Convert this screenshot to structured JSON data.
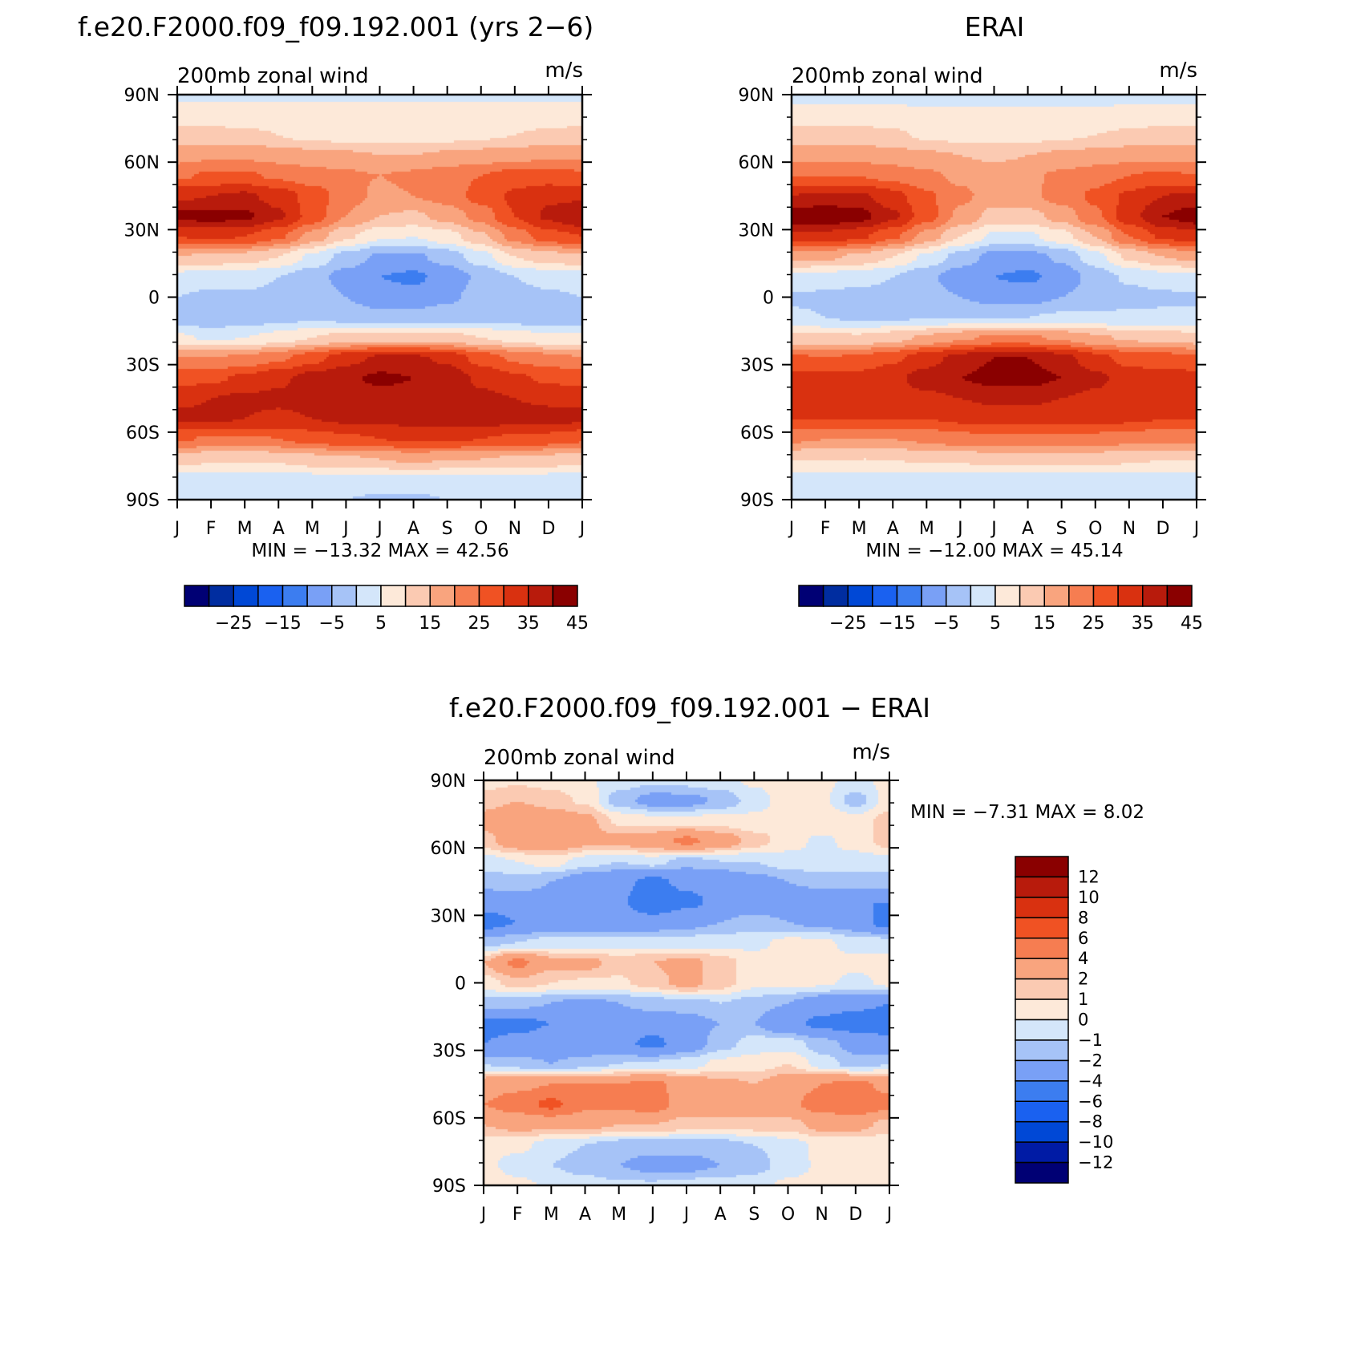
{
  "chart_data": [
    {
      "type": "heatmap",
      "title": "f.e20.F2000.f09_f09.192.001 (yrs 2−6)",
      "subtitle_left": "200mb zonal wind",
      "subtitle_right": "m/s",
      "x_ticklabels": [
        "J",
        "F",
        "M",
        "A",
        "M",
        "J",
        "J",
        "A",
        "S",
        "O",
        "N",
        "D",
        "J"
      ],
      "y_ticklabels": [
        "90N",
        "60N",
        "30N",
        "0",
        "30S",
        "60S",
        "90S"
      ],
      "min_max_text": "MIN = −13.32 MAX = 42.56",
      "min": -13.32,
      "max": 42.56,
      "levels": [
        -30,
        -25,
        -20,
        -15,
        -10,
        -5,
        0,
        5,
        10,
        15,
        20,
        25,
        30,
        35,
        40,
        45
      ],
      "colorbar_labels": [
        "−25",
        "−15",
        "−5",
        "5",
        "15",
        "25",
        "35",
        "45"
      ],
      "colorbar_orientation": "horizontal",
      "grid": false,
      "z": [
        [
          4,
          4,
          4,
          4,
          4,
          4,
          4,
          4,
          4,
          4,
          4,
          4,
          4
        ],
        [
          7,
          7,
          7,
          8,
          8,
          8,
          8,
          8,
          7,
          7,
          7,
          7,
          7
        ],
        [
          12,
          12,
          11,
          10,
          8,
          8,
          8,
          8,
          8,
          9,
          10,
          11,
          12
        ],
        [
          18,
          19,
          19,
          18,
          17,
          16,
          15,
          15,
          16,
          17,
          18,
          19,
          19
        ],
        [
          24,
          26,
          26,
          24,
          22,
          21,
          20,
          21,
          23,
          25,
          27,
          27,
          26
        ],
        [
          34,
          35,
          36,
          33,
          28,
          22,
          19,
          20,
          22,
          27,
          31,
          34,
          34
        ],
        [
          41,
          42,
          41,
          36,
          28,
          20,
          15,
          14,
          17,
          22,
          30,
          36,
          40
        ],
        [
          30,
          31,
          30,
          26,
          18,
          11,
          6,
          5,
          8,
          14,
          22,
          28,
          30
        ],
        [
          15,
          14,
          13,
          10,
          4,
          -2,
          -6,
          -6,
          -3,
          3,
          10,
          13,
          14
        ],
        [
          3,
          2,
          2,
          0,
          -3,
          -7,
          -10,
          -11,
          -8,
          -4,
          0,
          2,
          3
        ],
        [
          0,
          -1,
          -1,
          -1,
          -2,
          -5,
          -8,
          -8,
          -6,
          -3,
          -2,
          -1,
          0
        ],
        [
          -3,
          -4,
          -3,
          -2,
          -1,
          -2,
          -3,
          -3,
          -2,
          -2,
          -3,
          -3,
          -3
        ],
        [
          6,
          4,
          5,
          7,
          10,
          12,
          13,
          13,
          12,
          10,
          8,
          6,
          6
        ],
        [
          20,
          20,
          21,
          24,
          28,
          33,
          36,
          36,
          34,
          28,
          24,
          22,
          20
        ],
        [
          28,
          29,
          31,
          34,
          37,
          39,
          41,
          40,
          38,
          34,
          31,
          29,
          28
        ],
        [
          34,
          35,
          36,
          36,
          37,
          37,
          38,
          38,
          37,
          36,
          35,
          34,
          34
        ],
        [
          36,
          36,
          35,
          34,
          35,
          36,
          36,
          37,
          37,
          37,
          37,
          37,
          36
        ],
        [
          26,
          24,
          24,
          25,
          27,
          29,
          30,
          31,
          31,
          30,
          29,
          28,
          26
        ],
        [
          12,
          11,
          11,
          11,
          13,
          14,
          15,
          16,
          15,
          15,
          14,
          13,
          12
        ],
        [
          3,
          3,
          3,
          3,
          3,
          4,
          4,
          4,
          4,
          4,
          4,
          3,
          3
        ],
        [
          1,
          0,
          0,
          0,
          0,
          0,
          -1,
          -1,
          0,
          0,
          0,
          0,
          1
        ]
      ]
    },
    {
      "type": "heatmap",
      "title": "ERAI",
      "subtitle_left": "200mb zonal wind",
      "subtitle_right": "m/s",
      "x_ticklabels": [
        "J",
        "F",
        "M",
        "A",
        "M",
        "J",
        "J",
        "A",
        "S",
        "O",
        "N",
        "D",
        "J"
      ],
      "y_ticklabels": [
        "90N",
        "60N",
        "30N",
        "0",
        "30S",
        "60S",
        "90S"
      ],
      "min_max_text": "MIN = −12.00 MAX = 45.14",
      "min": -12.0,
      "max": 45.14,
      "levels": [
        -30,
        -25,
        -20,
        -15,
        -10,
        -5,
        0,
        5,
        10,
        15,
        20,
        25,
        30,
        35,
        40,
        45
      ],
      "colorbar_labels": [
        "−25",
        "−15",
        "−5",
        "5",
        "15",
        "25",
        "35",
        "45"
      ],
      "colorbar_orientation": "horizontal",
      "grid": false,
      "z": [
        [
          3,
          3,
          3,
          3,
          3,
          3,
          3,
          3,
          3,
          3,
          3,
          3,
          3
        ],
        [
          7,
          7,
          7,
          7,
          6,
          6,
          6,
          6,
          6,
          6,
          7,
          7,
          7
        ],
        [
          12,
          12,
          12,
          11,
          9,
          8,
          8,
          8,
          9,
          10,
          11,
          12,
          12
        ],
        [
          18,
          18,
          18,
          17,
          16,
          15,
          14,
          15,
          16,
          17,
          18,
          18,
          18
        ],
        [
          25,
          25,
          25,
          23,
          21,
          19,
          18,
          19,
          21,
          23,
          25,
          26,
          25
        ],
        [
          35,
          36,
          36,
          32,
          26,
          21,
          18,
          19,
          22,
          26,
          31,
          35,
          36
        ],
        [
          43,
          44,
          42,
          36,
          27,
          19,
          13,
          13,
          17,
          24,
          33,
          40,
          43
        ],
        [
          33,
          33,
          31,
          26,
          18,
          10,
          4,
          4,
          8,
          15,
          25,
          31,
          33
        ],
        [
          17,
          16,
          14,
          10,
          4,
          -2,
          -7,
          -7,
          -4,
          3,
          11,
          15,
          17
        ],
        [
          4,
          3,
          2,
          0,
          -4,
          -8,
          -10,
          -11,
          -8,
          -3,
          1,
          3,
          4
        ],
        [
          -1,
          -1,
          -2,
          -2,
          -3,
          -5,
          -7,
          -7,
          -5,
          -3,
          -2,
          -1,
          -1
        ],
        [
          1,
          0,
          -1,
          -1,
          0,
          0,
          0,
          0,
          1,
          1,
          1,
          1,
          1
        ],
        [
          12,
          11,
          11,
          13,
          16,
          19,
          21,
          21,
          19,
          16,
          14,
          13,
          12
        ],
        [
          26,
          25,
          26,
          29,
          33,
          37,
          40,
          40,
          37,
          32,
          28,
          27,
          26
        ],
        [
          32,
          32,
          32,
          34,
          37,
          40,
          42,
          42,
          40,
          36,
          33,
          32,
          32
        ],
        [
          33,
          33,
          33,
          33,
          34,
          35,
          36,
          36,
          35,
          34,
          33,
          33,
          33
        ],
        [
          30,
          30,
          30,
          30,
          30,
          31,
          32,
          32,
          32,
          32,
          31,
          30,
          30
        ],
        [
          21,
          20,
          20,
          20,
          21,
          23,
          24,
          24,
          24,
          23,
          22,
          21,
          21
        ],
        [
          10,
          10,
          10,
          10,
          11,
          11,
          12,
          12,
          12,
          12,
          11,
          10,
          10
        ],
        [
          3,
          3,
          3,
          3,
          3,
          3,
          3,
          3,
          3,
          3,
          3,
          3,
          3
        ],
        [
          1,
          1,
          1,
          1,
          1,
          1,
          1,
          1,
          1,
          1,
          1,
          1,
          1
        ]
      ]
    },
    {
      "type": "heatmap",
      "title": "f.e20.F2000.f09_f09.192.001 − ERAI",
      "subtitle_left": "200mb zonal wind",
      "subtitle_right": "m/s",
      "x_ticklabels": [
        "J",
        "F",
        "M",
        "A",
        "M",
        "J",
        "J",
        "A",
        "S",
        "O",
        "N",
        "D",
        "J"
      ],
      "y_ticklabels": [
        "90N",
        "60N",
        "30N",
        "0",
        "30S",
        "60S",
        "90S"
      ],
      "min_max_text": "MIN = −7.31 MAX = 8.02",
      "min": -7.31,
      "max": 8.02,
      "levels": [
        -12,
        -10,
        -8,
        -6,
        -4,
        -2,
        -1,
        0,
        1,
        2,
        4,
        6,
        8,
        10,
        12
      ],
      "colorbar_labels": [
        "12",
        "10",
        "8",
        "6",
        "4",
        "2",
        "1",
        "0",
        "−1",
        "−2",
        "−4",
        "−6",
        "−8",
        "−10",
        "−12"
      ],
      "colorbar_orientation": "vertical",
      "grid": false,
      "z": [
        [
          0.5,
          0.8,
          0.6,
          0.2,
          -0.5,
          -0.8,
          -0.6,
          -0.3,
          0.2,
          0.4,
          0.2,
          -0.3,
          0.3
        ],
        [
          1.5,
          2.0,
          1.5,
          0.8,
          -1.5,
          -2.5,
          -2.5,
          -1.8,
          -0.5,
          0.5,
          0.3,
          -1.5,
          0.5
        ],
        [
          2.5,
          3.5,
          3.0,
          2.5,
          0.8,
          0.5,
          0.5,
          0.5,
          0.3,
          0.8,
          1.0,
          0.5,
          1.5
        ],
        [
          1.5,
          3.0,
          3.5,
          2.5,
          2.5,
          3.0,
          4.5,
          3.0,
          1.5,
          0.5,
          -0.3,
          0.5,
          1.5
        ],
        [
          -0.5,
          0.0,
          0.5,
          -0.5,
          -1.0,
          -0.5,
          -1.5,
          -1.0,
          -1.0,
          -0.5,
          -0.3,
          -0.5,
          -0.5
        ],
        [
          -1.5,
          -1.5,
          -2.0,
          -3.0,
          -3.5,
          -4.5,
          -3.5,
          -3.5,
          -2.5,
          -2.0,
          -1.5,
          -1.5,
          -1.5
        ],
        [
          -3.0,
          -2.5,
          -2.5,
          -3.5,
          -3.5,
          -6.0,
          -4.5,
          -3.5,
          -3.0,
          -3.0,
          -3.5,
          -4.0,
          -4.0
        ],
        [
          -5.0,
          -4.0,
          -3.0,
          -3.5,
          -3.0,
          -3.0,
          -2.5,
          -2.0,
          -1.5,
          -2.0,
          -2.5,
          -3.0,
          -5.0
        ],
        [
          -1.5,
          -1.0,
          -0.5,
          -0.5,
          -0.5,
          -0.5,
          -0.5,
          -0.5,
          -0.3,
          0.3,
          0.3,
          -0.5,
          -0.5
        ],
        [
          2.0,
          4.5,
          2.5,
          2.5,
          1.5,
          2.0,
          2.5,
          1.5,
          0.5,
          0.5,
          0.5,
          0.3,
          0.5
        ],
        [
          0.5,
          1.5,
          1.0,
          0.8,
          0.8,
          1.5,
          2.5,
          1.5,
          0.3,
          0.3,
          0.2,
          -0.3,
          0.3
        ],
        [
          -1.5,
          -1.5,
          -2.0,
          -2.5,
          -2.0,
          -1.5,
          -1.5,
          -1.0,
          -1.5,
          -2.0,
          -3.0,
          -3.5,
          -4.0
        ],
        [
          -4.5,
          -4.5,
          -4.0,
          -3.5,
          -3.0,
          -3.0,
          -2.5,
          -2.0,
          -2.0,
          -3.5,
          -4.5,
          -5.0,
          -5.5
        ],
        [
          -4.0,
          -3.5,
          -3.0,
          -3.0,
          -3.5,
          -4.5,
          -3.0,
          -1.5,
          -0.5,
          -0.5,
          -1.5,
          -2.5,
          -3.0
        ],
        [
          -1.0,
          -1.5,
          -2.0,
          -1.5,
          -1.0,
          -0.8,
          -0.5,
          0.3,
          0.5,
          1.0,
          -0.5,
          -1.5,
          -1.0
        ],
        [
          3.0,
          3.5,
          4.0,
          4.0,
          4.0,
          4.5,
          3.0,
          2.5,
          2.0,
          3.0,
          4.0,
          4.5,
          3.5
        ],
        [
          4.0,
          5.0,
          6.5,
          4.5,
          4.5,
          5.0,
          3.0,
          3.5,
          3.0,
          3.5,
          5.0,
          5.5,
          4.5
        ],
        [
          2.0,
          2.5,
          2.5,
          2.5,
          2.0,
          2.0,
          1.5,
          1.5,
          1.5,
          1.5,
          2.5,
          2.5,
          1.5
        ],
        [
          0.5,
          0.3,
          -0.5,
          -1.0,
          -1.5,
          -1.5,
          -1.5,
          -1.5,
          -1.0,
          -0.5,
          0.3,
          0.3,
          0.3
        ],
        [
          0.3,
          -0.5,
          -1.0,
          -1.5,
          -2.0,
          -2.5,
          -2.5,
          -2.0,
          -1.5,
          -0.5,
          0.2,
          0.3,
          0.5
        ],
        [
          0.8,
          0.3,
          -0.2,
          -0.5,
          -0.8,
          -0.8,
          -0.5,
          -0.5,
          -0.3,
          0.2,
          0.3,
          0.5,
          0.8
        ]
      ]
    }
  ],
  "colors": {
    "twelve": [
      "#000074",
      "#002da0",
      "#0048d6",
      "#1a61f0",
      "#3c7df0",
      "#79a0f6",
      "#a6c3f7",
      "#d4e6fa",
      "#fde9d9",
      "#fbcab2",
      "#f9a47e",
      "#f67d51",
      "#f05223",
      "#d93110",
      "#b81b0c",
      "#8a0000"
    ],
    "diff": [
      "#000074",
      "#001ba5",
      "#0048d6",
      "#1a61f0",
      "#3c7df0",
      "#79a0f6",
      "#a6c3f7",
      "#d4e6fa",
      "#fde9d9",
      "#fbcab2",
      "#f9a47e",
      "#f67d51",
      "#f05223",
      "#d93110",
      "#b81b0c",
      "#8a0000"
    ]
  }
}
